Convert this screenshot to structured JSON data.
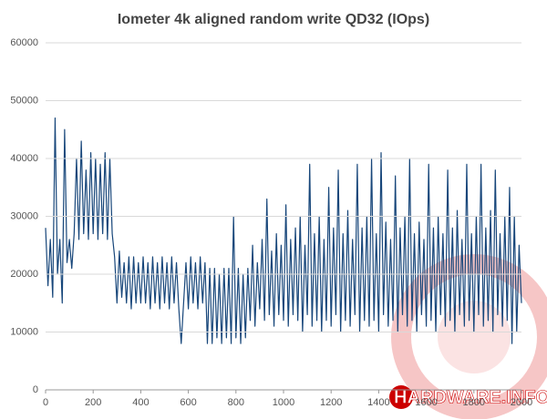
{
  "chart_data": {
    "type": "line",
    "title": "Iometer 4k aligned random write QD32 (IOps)",
    "watermark": "HARDWARE.INFO",
    "x": [
      0,
      10,
      20,
      30,
      40,
      50,
      60,
      70,
      80,
      90,
      100,
      110,
      120,
      130,
      140,
      150,
      160,
      170,
      180,
      190,
      200,
      210,
      220,
      230,
      240,
      250,
      260,
      270,
      280,
      290,
      300,
      310,
      320,
      330,
      340,
      350,
      360,
      370,
      380,
      390,
      400,
      410,
      420,
      430,
      440,
      450,
      460,
      470,
      480,
      490,
      500,
      510,
      520,
      530,
      540,
      550,
      560,
      570,
      580,
      590,
      600,
      610,
      620,
      630,
      640,
      650,
      660,
      670,
      680,
      690,
      700,
      710,
      720,
      730,
      740,
      750,
      760,
      770,
      780,
      790,
      800,
      810,
      820,
      830,
      840,
      850,
      860,
      870,
      880,
      890,
      900,
      910,
      920,
      930,
      940,
      950,
      960,
      970,
      980,
      990,
      1000,
      1010,
      1020,
      1030,
      1040,
      1050,
      1060,
      1070,
      1080,
      1090,
      1100,
      1110,
      1120,
      1130,
      1140,
      1150,
      1160,
      1170,
      1180,
      1190,
      1200,
      1210,
      1220,
      1230,
      1240,
      1250,
      1260,
      1270,
      1280,
      1290,
      1300,
      1310,
      1320,
      1330,
      1340,
      1350,
      1360,
      1370,
      1380,
      1390,
      1400,
      1410,
      1420,
      1430,
      1440,
      1450,
      1460,
      1470,
      1480,
      1490,
      1500,
      1510,
      1520,
      1530,
      1540,
      1550,
      1560,
      1570,
      1580,
      1590,
      1600,
      1610,
      1620,
      1630,
      1640,
      1650,
      1660,
      1670,
      1680,
      1690,
      1700,
      1710,
      1720,
      1730,
      1740,
      1750,
      1760,
      1770,
      1780,
      1790,
      1800,
      1810,
      1820,
      1830,
      1840,
      1850,
      1860,
      1870,
      1880,
      1890,
      1900,
      1910,
      1920,
      1930,
      1940,
      1950,
      1960,
      1970,
      1980,
      1990,
      2000
    ],
    "series": [
      {
        "color": "#17467a",
        "values": [
          28000,
          18000,
          26000,
          16000,
          47000,
          20000,
          26000,
          15000,
          45000,
          22000,
          26000,
          21000,
          27000,
          40000,
          26000,
          43000,
          27000,
          38000,
          26000,
          41000,
          27000,
          40000,
          26000,
          39000,
          27000,
          41000,
          26000,
          40000,
          27000,
          23000,
          15000,
          24000,
          16000,
          22000,
          15000,
          23000,
          14000,
          23000,
          15000,
          22000,
          15000,
          23000,
          15000,
          22000,
          14000,
          23000,
          15000,
          22000,
          14000,
          23000,
          15000,
          22000,
          14000,
          23000,
          15000,
          22000,
          14000,
          8000,
          15000,
          22000,
          14000,
          23000,
          15000,
          22000,
          14000,
          23000,
          15000,
          22000,
          8000,
          21000,
          8000,
          21000,
          9000,
          20000,
          8000,
          21000,
          9000,
          21000,
          8000,
          30000,
          9000,
          21000,
          8000,
          20000,
          9000,
          21000,
          12000,
          25000,
          11000,
          22000,
          14000,
          26000,
          12000,
          33000,
          13000,
          24000,
          11000,
          27000,
          13000,
          25000,
          12000,
          32000,
          11000,
          26000,
          13000,
          28000,
          12000,
          30000,
          10000,
          25000,
          13000,
          39000,
          11000,
          27000,
          12000,
          30000,
          10000,
          26000,
          12000,
          35000,
          11000,
          28000,
          13000,
          38000,
          10000,
          27000,
          12000,
          31000,
          11000,
          26000,
          13000,
          39000,
          10000,
          28000,
          12000,
          30000,
          11000,
          40000,
          12000,
          27000,
          10000,
          41000,
          13000,
          29000,
          11000,
          26000,
          12000,
          37000,
          10000,
          28000,
          13000,
          30000,
          11000,
          40000,
          12000,
          27000,
          10000,
          29000,
          13000,
          26000,
          11000,
          39000,
          12000,
          28000,
          10000,
          30000,
          13000,
          27000,
          11000,
          38000,
          12000,
          28000,
          10000,
          31000,
          13000,
          26000,
          11000,
          39000,
          12000,
          27000,
          10000,
          30000,
          13000,
          39000,
          11000,
          28000,
          12000,
          31000,
          10000,
          38000,
          13000,
          27000,
          11000,
          30000,
          12000,
          35000,
          8000,
          30000,
          10000,
          25000,
          15000
        ]
      }
    ],
    "xlim": [
      0,
      2000
    ],
    "xticks": [
      0,
      200,
      400,
      600,
      800,
      1000,
      1200,
      1400,
      1600,
      1800,
      2000
    ],
    "ylim": [
      0,
      60000
    ],
    "yticks": [
      0,
      10000,
      20000,
      30000,
      40000,
      50000,
      60000
    ],
    "grid": true
  }
}
